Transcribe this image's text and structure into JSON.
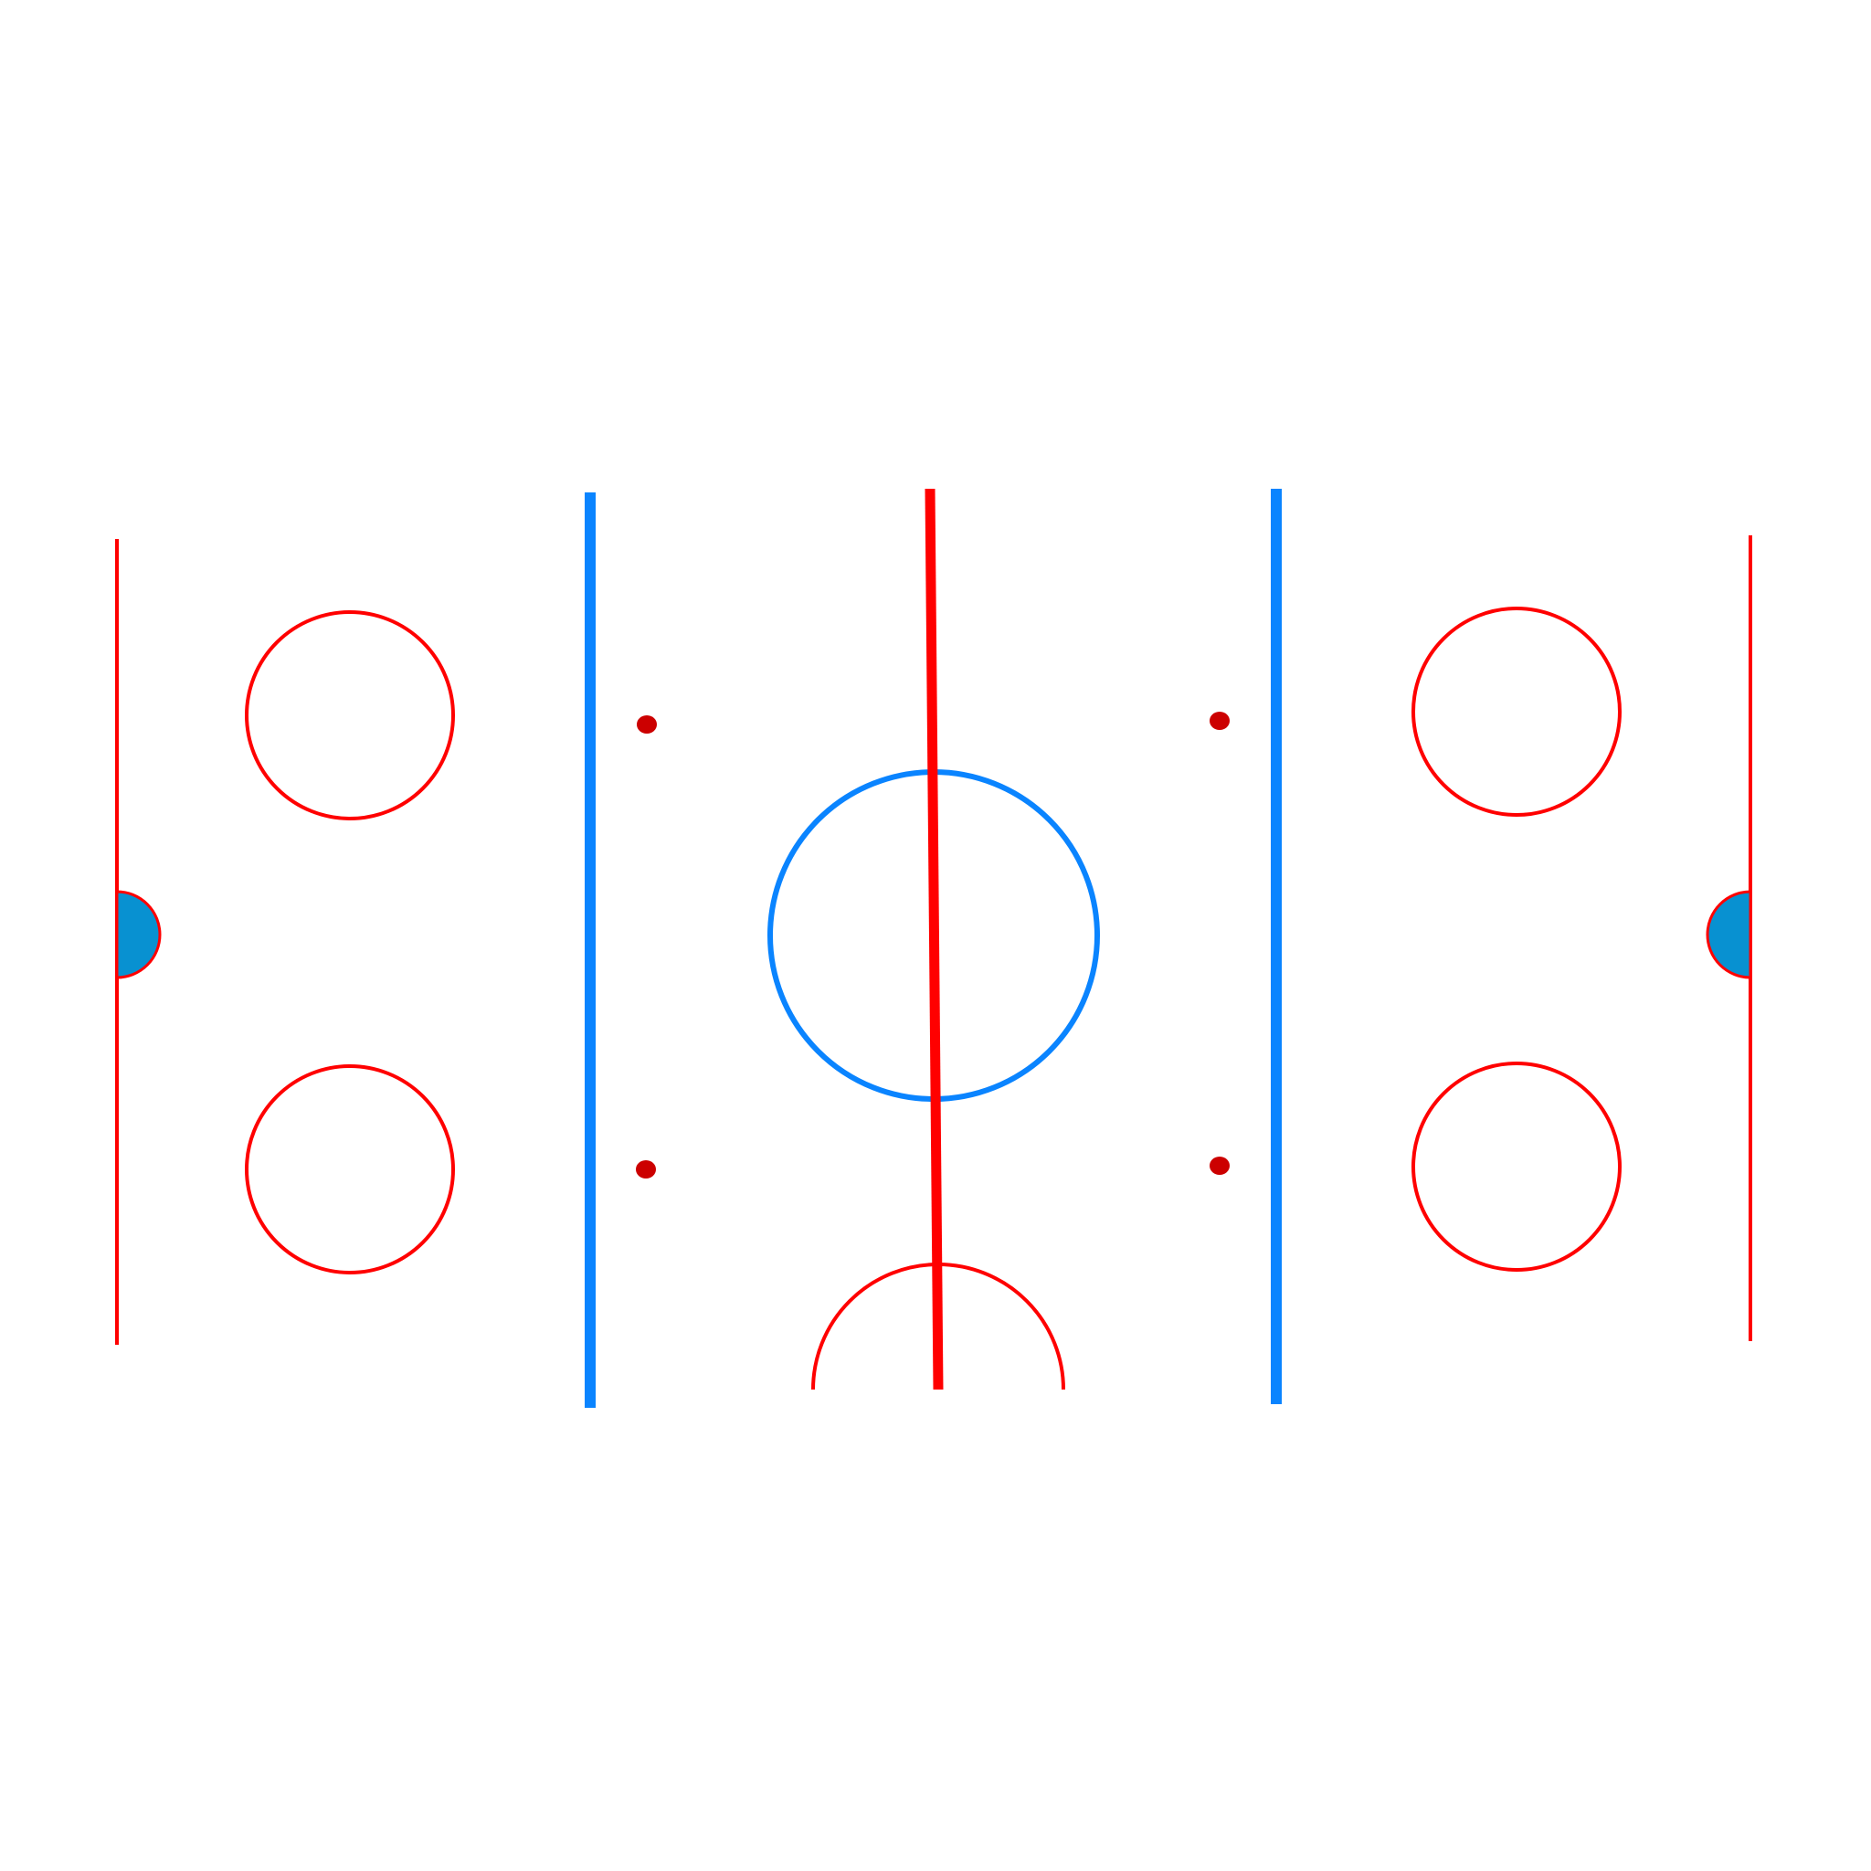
{
  "colors": {
    "background": "#ffffff",
    "red_line": "#ff0000",
    "blue_line": "#0a84ff",
    "center_circle": "#0a84ff",
    "faceoff_circle": "#ff0000",
    "faceoff_dot": "#cc0000",
    "crease_fill": "#0891d1",
    "crease_outline": "#ff0000"
  },
  "icons": {
    "rink": "ice-hockey-rink-diagram"
  },
  "rink": {
    "lines": [
      "left-goal-line",
      "left-blue-line",
      "center-red-line",
      "right-blue-line",
      "right-goal-line"
    ],
    "faceoff_circles": 4,
    "neutral_zone_dots": 4,
    "goal_creases": 2,
    "center_circle": 1,
    "referee_crease": 1
  }
}
